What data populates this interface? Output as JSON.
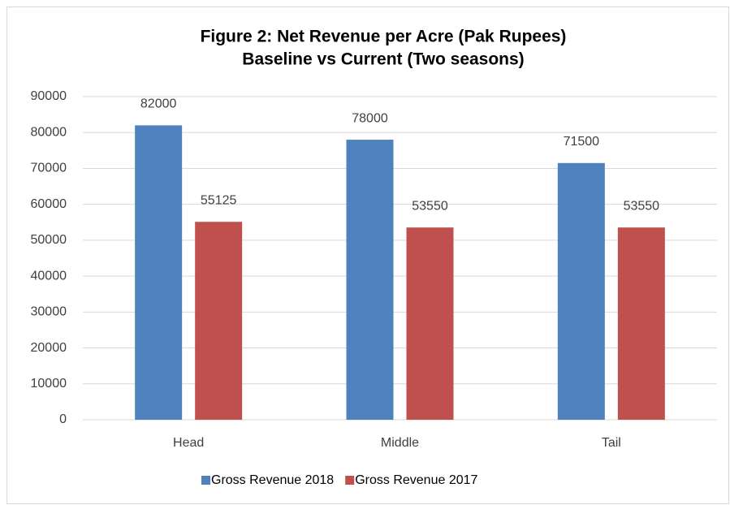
{
  "chart_data": {
    "type": "bar",
    "title": "Figure 2: Net Revenue per Acre (Pak Rupees)",
    "subtitle": "Baseline vs Current (Two seasons)",
    "categories": [
      "Head",
      "Middle",
      "Tail"
    ],
    "series": [
      {
        "name": "Gross Revenue 2018",
        "color": "#4f81bd",
        "values": [
          82000,
          78000,
          71500
        ]
      },
      {
        "name": "Gross Revenue 2017",
        "color": "#c0504d",
        "values": [
          55125,
          53550,
          53550
        ]
      }
    ],
    "ylim": [
      0,
      90000
    ],
    "yticks": [
      0,
      10000,
      20000,
      30000,
      40000,
      50000,
      60000,
      70000,
      80000,
      90000
    ],
    "grid": true,
    "legend": "bottom"
  }
}
